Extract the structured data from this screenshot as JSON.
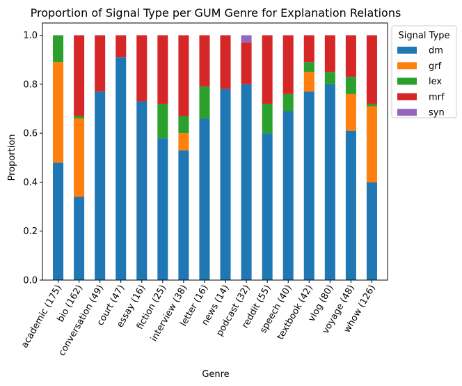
{
  "chart_data": {
    "type": "bar",
    "stacked": true,
    "title": "Proportion of Signal Type per GUM Genre for Explanation Relations",
    "xlabel": "Genre",
    "ylabel": "Proportion",
    "ylim": [
      0,
      1.05
    ],
    "yticks": [
      "0.0",
      "0.2",
      "0.4",
      "0.6",
      "0.8",
      "1.0"
    ],
    "grid": false,
    "legend": {
      "title": "Signal Type",
      "placement": "outside-right"
    },
    "categories": [
      "academic (175)",
      "bio (162)",
      "conversation (49)",
      "court (47)",
      "essay (16)",
      "fiction (25)",
      "interview (38)",
      "letter (16)",
      "news (14)",
      "podcast (32)",
      "reddit (55)",
      "speech (40)",
      "textbook (42)",
      "vlog (80)",
      "voyage (48)",
      "whow (126)"
    ],
    "series": [
      {
        "name": "dm",
        "color": "#1f77b4",
        "values": [
          0.48,
          0.34,
          0.77,
          0.91,
          0.73,
          0.58,
          0.53,
          0.66,
          0.78,
          0.8,
          0.6,
          0.69,
          0.77,
          0.8,
          0.61,
          0.4
        ]
      },
      {
        "name": "grf",
        "color": "#ff7f0e",
        "values": [
          0.41,
          0.32,
          0.0,
          0.0,
          0.0,
          0.0,
          0.07,
          0.0,
          0.0,
          0.0,
          0.0,
          0.0,
          0.08,
          0.0,
          0.15,
          0.31
        ]
      },
      {
        "name": "lex",
        "color": "#2ca02c",
        "values": [
          0.11,
          0.01,
          0.0,
          0.0,
          0.0,
          0.14,
          0.07,
          0.13,
          0.0,
          0.0,
          0.12,
          0.07,
          0.04,
          0.05,
          0.07,
          0.01
        ]
      },
      {
        "name": "mrf",
        "color": "#d62728",
        "values": [
          0.0,
          0.33,
          0.23,
          0.09,
          0.27,
          0.28,
          0.33,
          0.21,
          0.22,
          0.17,
          0.28,
          0.24,
          0.11,
          0.15,
          0.17,
          0.28
        ]
      },
      {
        "name": "syn",
        "color": "#9467bd",
        "values": [
          0.0,
          0.0,
          0.0,
          0.0,
          0.0,
          0.0,
          0.0,
          0.0,
          0.0,
          0.03,
          0.0,
          0.0,
          0.0,
          0.0,
          0.0,
          0.0
        ]
      }
    ]
  }
}
